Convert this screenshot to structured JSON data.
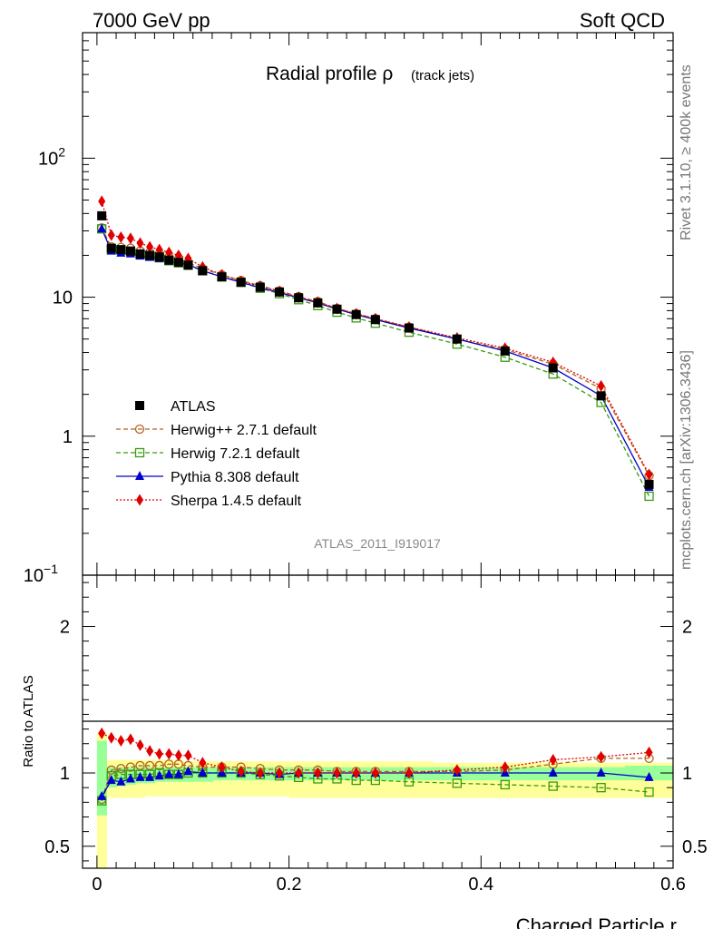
{
  "header": {
    "left": "7000 GeV pp",
    "right": "Soft QCD"
  },
  "side": {
    "rivet": "Rivet 3.1.10, ≥ 400k events",
    "mcplots": "mcplots.cern.ch [arXiv:1306.3436]"
  },
  "chart_data": [
    {
      "type": "line",
      "panel": "main",
      "title": "Radial profile ρ",
      "title_note": "(track jets)",
      "watermark": "ATLAS_2011_I919017",
      "xlabel": "Charged Particle r",
      "ylabel": "",
      "yscale": "log",
      "xlim": [
        -0.015,
        0.6
      ],
      "ylim": [
        0.1,
        800
      ],
      "y_ticks": [
        {
          "value": 100,
          "label": "10",
          "exp": "2"
        },
        {
          "value": 10,
          "label": "10",
          "exp": ""
        },
        {
          "value": 1,
          "label": "1",
          "exp": ""
        },
        {
          "value": 0.1,
          "label": "10",
          "exp": "−1"
        }
      ],
      "x": [
        0.005,
        0.015,
        0.025,
        0.035,
        0.045,
        0.055,
        0.065,
        0.075,
        0.085,
        0.095,
        0.11,
        0.13,
        0.15,
        0.17,
        0.19,
        0.21,
        0.23,
        0.25,
        0.27,
        0.29,
        0.325,
        0.375,
        0.425,
        0.475,
        0.525,
        0.575
      ],
      "series": [
        {
          "name": "ATLAS",
          "color": "#000000",
          "marker": "square-filled",
          "line": "none",
          "values": [
            38.5,
            22.5,
            22,
            21.5,
            20.5,
            20,
            19.5,
            18.5,
            17.8,
            17,
            15.5,
            14,
            12.8,
            11.8,
            10.9,
            9.9,
            9.1,
            8.2,
            7.5,
            6.9,
            6.0,
            5.0,
            4.1,
            3.1,
            1.95,
            0.45
          ]
        },
        {
          "name": "Herwig++ 2.7.1 default",
          "color": "#b5651d",
          "marker": "circle-open",
          "line": "dashed",
          "values": [
            31.5,
            23,
            22.8,
            22.5,
            21.5,
            21,
            20.5,
            19.5,
            18.8,
            17.8,
            16,
            14.5,
            13.2,
            12.1,
            11.1,
            10.1,
            9.3,
            8.3,
            7.6,
            7.0,
            6.1,
            5.0,
            4.2,
            3.3,
            2.2,
            0.52
          ]
        },
        {
          "name": "Herwig 7.2.1 default",
          "color": "#3a9a10",
          "marker": "square-open",
          "line": "dashed",
          "values": [
            31,
            22,
            21.8,
            21.3,
            20.2,
            19.7,
            19.2,
            18.3,
            17.7,
            17,
            15.5,
            14,
            12.8,
            11.6,
            10.6,
            9.6,
            8.7,
            7.8,
            7.1,
            6.5,
            5.6,
            4.6,
            3.7,
            2.8,
            1.75,
            0.37
          ]
        },
        {
          "name": "Pythia 8.308 default",
          "color": "#0000cc",
          "marker": "triangle-filled",
          "line": "solid",
          "values": [
            31,
            21.5,
            20.8,
            20.5,
            19.8,
            19.4,
            19,
            18.2,
            17.7,
            17.2,
            15.5,
            14,
            12.8,
            11.7,
            10.8,
            9.9,
            9.1,
            8.2,
            7.5,
            6.9,
            6.0,
            5.0,
            4.1,
            3.1,
            1.95,
            0.43
          ]
        },
        {
          "name": "Sherpa 1.4.5 default",
          "color": "#e00000",
          "marker": "diamond-filled",
          "line": "dotted",
          "values": [
            49,
            28,
            27,
            26.5,
            24.5,
            23,
            22,
            21,
            20,
            19,
            16.5,
            14.5,
            13,
            12,
            11,
            10,
            9.2,
            8.3,
            7.6,
            7.0,
            6.1,
            5.1,
            4.3,
            3.4,
            2.3,
            0.53
          ]
        }
      ],
      "legend": [
        "ATLAS",
        "Herwig++ 2.7.1 default",
        "Herwig 7.2.1 default",
        "Pythia 8.308 default",
        "Sherpa 1.4.5 default"
      ],
      "legend_position": "bottom-left"
    },
    {
      "type": "line",
      "panel": "ratio",
      "ylabel": "Ratio to ATLAS",
      "xlabel": "Charged Particle r",
      "xlim": [
        -0.015,
        0.6
      ],
      "ylim": [
        0.35,
        2.35
      ],
      "x_ticks": [
        {
          "value": 0,
          "label": "0"
        },
        {
          "value": 0.2,
          "label": "0.2"
        },
        {
          "value": 0.4,
          "label": "0.4"
        },
        {
          "value": 0.6,
          "label": "0.6"
        }
      ],
      "y_ticks": [
        {
          "value": 2,
          "label": "2"
        },
        {
          "value": 1,
          "label": "1"
        },
        {
          "value": 0.5,
          "label": "0.5"
        }
      ],
      "bin_edges": [
        0,
        0.01,
        0.02,
        0.03,
        0.04,
        0.05,
        0.06,
        0.07,
        0.08,
        0.09,
        0.1,
        0.12,
        0.14,
        0.16,
        0.18,
        0.2,
        0.22,
        0.24,
        0.26,
        0.28,
        0.3,
        0.35,
        0.4,
        0.45,
        0.5,
        0.55,
        0.6
      ],
      "band_total": {
        "color": "#ffff99",
        "low": [
          0.35,
          0.83,
          0.83,
          0.83,
          0.83,
          0.84,
          0.84,
          0.84,
          0.84,
          0.84,
          0.84,
          0.84,
          0.84,
          0.84,
          0.84,
          0.83,
          0.83,
          0.83,
          0.83,
          0.83,
          0.83,
          0.83,
          0.83,
          0.83,
          0.83,
          0.83
        ],
        "high": [
          1.28,
          1.09,
          1.09,
          1.09,
          1.09,
          1.09,
          1.09,
          1.09,
          1.09,
          1.08,
          1.08,
          1.08,
          1.08,
          1.08,
          1.08,
          1.08,
          1.08,
          1.08,
          1.08,
          1.08,
          1.08,
          1.07,
          1.07,
          1.07,
          1.07,
          1.07
        ]
      },
      "band_stat": {
        "color": "#99ff99",
        "low": [
          0.71,
          0.9,
          0.91,
          0.92,
          0.93,
          0.93,
          0.94,
          0.94,
          0.94,
          0.94,
          0.94,
          0.95,
          0.95,
          0.95,
          0.95,
          0.95,
          0.95,
          0.95,
          0.95,
          0.95,
          0.95,
          0.95,
          0.95,
          0.95,
          0.95,
          0.95
        ],
        "high": [
          1.22,
          1.04,
          1.04,
          1.04,
          1.04,
          1.04,
          1.04,
          1.04,
          1.04,
          1.04,
          1.04,
          1.04,
          1.04,
          1.04,
          1.04,
          1.04,
          1.04,
          1.04,
          1.04,
          1.04,
          1.04,
          1.04,
          1.04,
          1.04,
          1.04,
          1.05
        ]
      },
      "x": [
        0.005,
        0.015,
        0.025,
        0.035,
        0.045,
        0.055,
        0.065,
        0.075,
        0.085,
        0.095,
        0.11,
        0.13,
        0.15,
        0.17,
        0.19,
        0.21,
        0.23,
        0.25,
        0.27,
        0.29,
        0.325,
        0.375,
        0.425,
        0.475,
        0.525,
        0.575
      ],
      "series": [
        {
          "name": "Herwig++ 2.7.1 default",
          "color": "#b5651d",
          "marker": "circle-open",
          "line": "dashed",
          "values": [
            0.82,
            1.02,
            1.03,
            1.04,
            1.05,
            1.05,
            1.05,
            1.06,
            1.06,
            1.05,
            1.04,
            1.04,
            1.04,
            1.03,
            1.02,
            1.02,
            1.02,
            1.01,
            1.01,
            1.01,
            1.01,
            1.01,
            1.02,
            1.06,
            1.1,
            1.1
          ]
        },
        {
          "name": "Herwig 7.2.1 default",
          "color": "#3a9a10",
          "marker": "square-open",
          "line": "dashed",
          "values": [
            0.81,
            0.98,
            0.99,
            0.99,
            0.99,
            0.99,
            1.0,
            0.99,
            0.99,
            1.0,
            1.0,
            1.0,
            1.0,
            0.99,
            0.98,
            0.97,
            0.96,
            0.96,
            0.95,
            0.95,
            0.94,
            0.93,
            0.92,
            0.91,
            0.9,
            0.87
          ]
        },
        {
          "name": "Pythia 8.308 default",
          "color": "#0000cc",
          "marker": "triangle-filled",
          "line": "solid",
          "values": [
            0.84,
            0.95,
            0.94,
            0.96,
            0.97,
            0.97,
            0.98,
            0.99,
            0.99,
            1.01,
            1.0,
            1.0,
            1.0,
            1.0,
            0.99,
            1.0,
            1.0,
            1.0,
            1.0,
            1.0,
            1.0,
            1.0,
            1.0,
            1.0,
            1.0,
            0.97
          ]
        },
        {
          "name": "Sherpa 1.4.5 default",
          "color": "#e00000",
          "marker": "diamond-filled",
          "line": "dotted",
          "values": [
            1.27,
            1.24,
            1.22,
            1.23,
            1.19,
            1.15,
            1.13,
            1.13,
            1.12,
            1.12,
            1.07,
            1.04,
            1.01,
            1.0,
            1.0,
            1.0,
            1.0,
            1.0,
            1.0,
            1.0,
            1.0,
            1.02,
            1.04,
            1.09,
            1.11,
            1.14
          ]
        }
      ]
    }
  ]
}
